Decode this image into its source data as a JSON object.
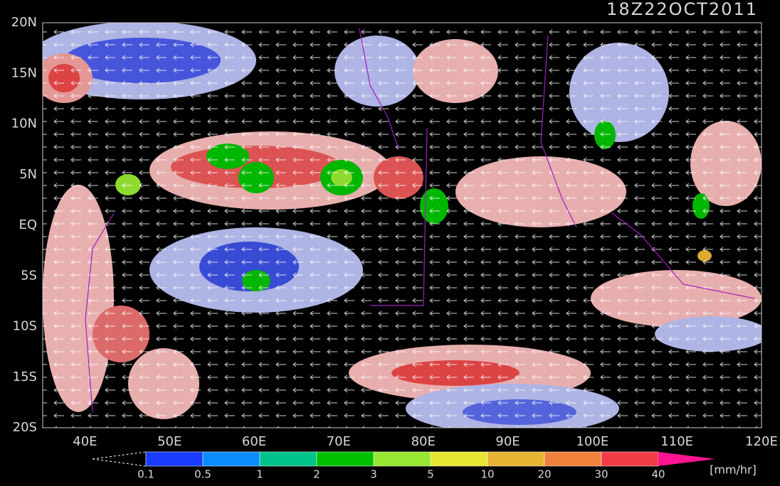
{
  "title": "18Z22OCT2011",
  "lat_labels": [
    "20N",
    "15N",
    "10N",
    "5N",
    "EQ",
    "5S",
    "10S",
    "15S",
    "20S"
  ],
  "lon_labels": [
    "40E",
    "50E",
    "60E",
    "70E",
    "80E",
    "90E",
    "100E",
    "110E",
    "120E"
  ],
  "colorbar": {
    "ticks": [
      0.1,
      0.5,
      1,
      2,
      3,
      5,
      10,
      20,
      30,
      40
    ],
    "colors": [
      "#1a3cff",
      "#0a8cff",
      "#00c48c",
      "#00c000",
      "#96e632",
      "#e6e632",
      "#e6b432",
      "#f0823c",
      "#f03c46",
      "#ff1493"
    ],
    "unit": "[mm/hr]"
  }
}
